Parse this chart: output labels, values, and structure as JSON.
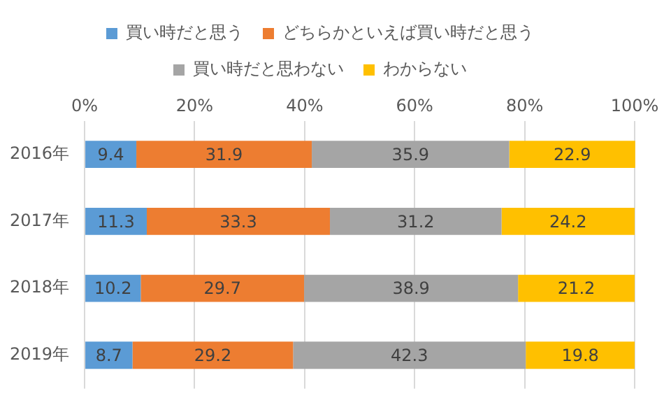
{
  "chart_data": {
    "type": "bar",
    "orientation": "horizontal",
    "stacked": true,
    "categories": [
      "2016年",
      "2017年",
      "2018年",
      "2019年"
    ],
    "series": [
      {
        "name": "買い時だと思う",
        "color": "#5b9bd5",
        "values": [
          9.4,
          11.3,
          10.2,
          8.7
        ]
      },
      {
        "name": "どちらかといえば買い時だと思う",
        "color": "#ed7d31",
        "values": [
          31.9,
          33.3,
          29.7,
          29.2
        ]
      },
      {
        "name": "買い時だと思わない",
        "color": "#a5a5a5",
        "values": [
          35.9,
          31.2,
          38.9,
          42.3
        ]
      },
      {
        "name": "わからない",
        "color": "#ffc000",
        "values": [
          22.9,
          24.2,
          21.2,
          19.8
        ]
      }
    ],
    "xlim": [
      0,
      100
    ],
    "xticks": [
      {
        "value": 0,
        "label": "0%"
      },
      {
        "value": 20,
        "label": "20%"
      },
      {
        "value": 40,
        "label": "40%"
      },
      {
        "value": 60,
        "label": "60%"
      },
      {
        "value": 80,
        "label": "80%"
      },
      {
        "value": 100,
        "label": "100%"
      }
    ],
    "grid": "x",
    "legend": "top",
    "data_labels": true
  }
}
